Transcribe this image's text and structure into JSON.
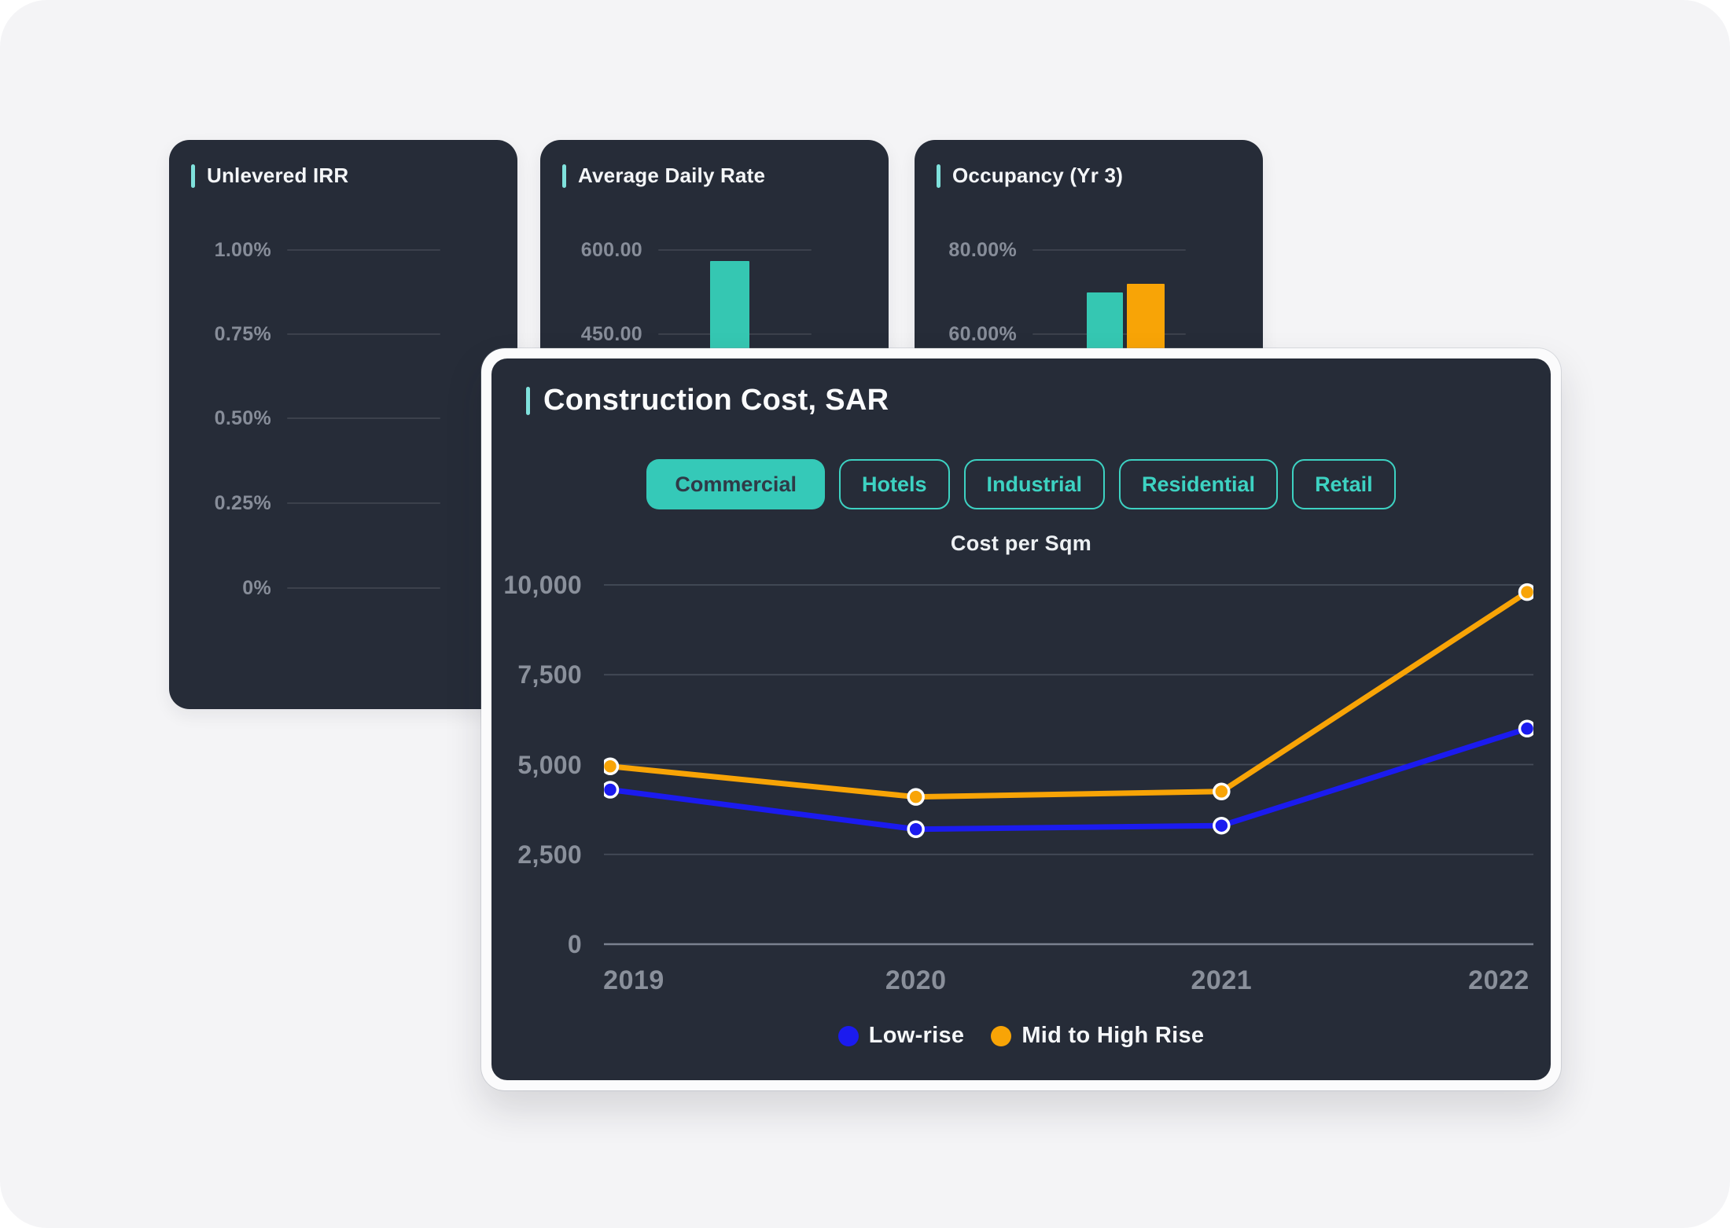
{
  "colors": {
    "page_background": "#F4F4F6",
    "card_background": "#262C38",
    "card_border": "#FBFBFC",
    "accent_teal_light": "#7FE1DC",
    "teal": "#35C9B8",
    "teal_outline": "#3DD2C2",
    "orange": "#F8A406",
    "blue": "#1B1BEF",
    "axis_text": "#8A909B"
  },
  "tabs": {
    "items": [
      "Commercial",
      "Hotels",
      "Industrial",
      "Residential",
      "Retail"
    ],
    "selected": "Commercial"
  },
  "chart_data": [
    {
      "id": "unlevered-irr",
      "type": "bar",
      "title": "Unlevered IRR",
      "tick_labels": [
        "1.00%",
        "0.75%",
        "0.50%",
        "0.25%",
        "0%"
      ],
      "tick_values": [
        1.0,
        0.75,
        0.5,
        0.25,
        0
      ],
      "ylim": [
        0,
        1.0
      ],
      "grid": true,
      "bars": []
    },
    {
      "id": "average-daily-rate",
      "type": "bar",
      "title": "Average Daily Rate",
      "tick_labels": [
        "600.00",
        "450.00"
      ],
      "tick_values": [
        600,
        450
      ],
      "visible_range": [
        450,
        600
      ],
      "grid": true,
      "bars": [
        {
          "name": "Average Daily Rate",
          "value": 580,
          "color": "#35C7B2"
        }
      ]
    },
    {
      "id": "occupancy-yr3",
      "type": "bar",
      "title": "Occupancy (Yr 3)",
      "tick_labels": [
        "80.00%",
        "60.00%"
      ],
      "tick_values": [
        80,
        60
      ],
      "visible_range": [
        60,
        80
      ],
      "grid": true,
      "bars": [
        {
          "name": "series-1",
          "value": 70,
          "color": "#35C7B2"
        },
        {
          "name": "series-2",
          "value": 72,
          "color": "#F8A406"
        }
      ]
    },
    {
      "id": "construction-cost",
      "type": "line",
      "title": "Construction Cost, SAR",
      "subtitle": "Cost per Sqm",
      "categories": [
        "2019",
        "2020",
        "2021",
        "2022"
      ],
      "series": [
        {
          "name": "Low-rise",
          "color": "#1B1BEF",
          "values": [
            4300,
            3200,
            3300,
            6000
          ]
        },
        {
          "name": "Mid to High Rise",
          "color": "#F8A406",
          "values": [
            4950,
            4100,
            4250,
            9800
          ]
        }
      ],
      "ylim": [
        0,
        10000
      ],
      "yticks": [
        10000,
        7500,
        5000,
        2500,
        0
      ],
      "ytick_labels": [
        "10,000",
        "7,500",
        "5,000",
        "2,500",
        "0"
      ],
      "grid": true,
      "legend_position": "bottom"
    }
  ]
}
